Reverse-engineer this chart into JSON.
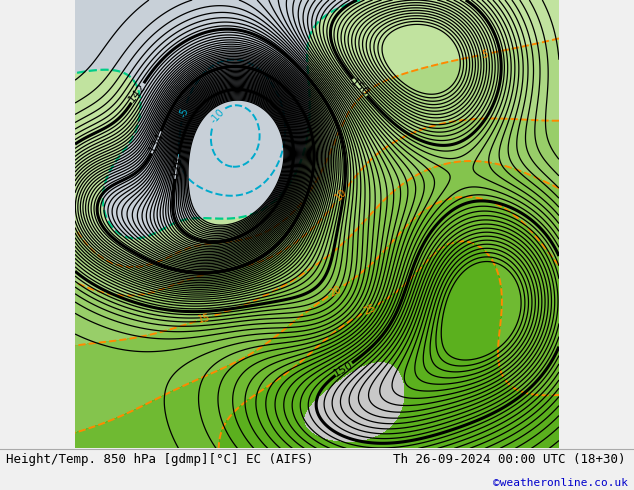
{
  "title_left": "Height/Temp. 850 hPa [gdmp][°C] EC (AIFS)",
  "title_right": "Th 26-09-2024 00:00 UTC (18+30)",
  "copyright": "©weatheronline.co.uk",
  "bg_color": "#f0f0f0",
  "land_color_main": "#c8c8c8",
  "land_color_warm": "#b8e08a",
  "sea_color": "#ddeeff",
  "title_fontsize": 9,
  "copyright_color": "#0000cc",
  "fig_width": 6.34,
  "fig_height": 4.9,
  "height_contour_color": "#000000",
  "temp_pos_color": "#ff8800",
  "temp_neg_color": "#00aacc",
  "temp_zero_color": "#00cc88"
}
